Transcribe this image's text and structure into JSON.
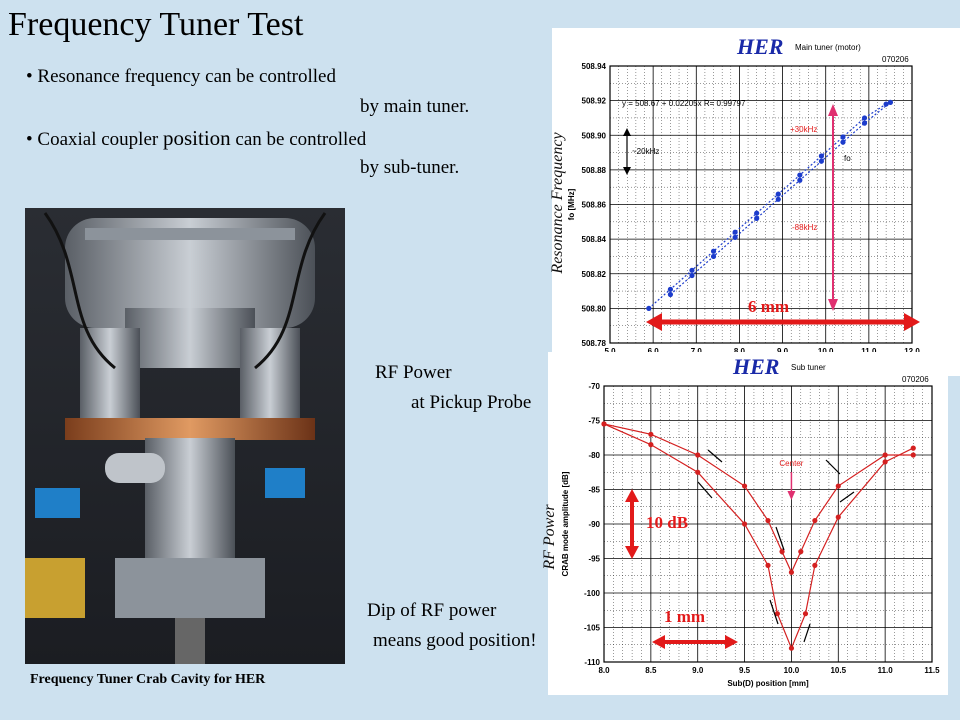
{
  "slide": {
    "title": "Frequency Tuner Test",
    "bullets": [
      {
        "marker": "•",
        "line1": "Resonance frequency can be controlled",
        "line2": "by main tuner."
      },
      {
        "marker": "•",
        "line1a": "Coaxial coupler ",
        "line1b": "position",
        "line1c": " can be controlled",
        "line2": "by sub-tuner."
      }
    ],
    "photo_caption": "Frequency Tuner Crab Cavity for HER",
    "rf_note": {
      "line1": "RF Power",
      "line2": "at Pickup Probe"
    },
    "dip_note": {
      "line1": "Dip of RF power",
      "line2": "means good position!"
    },
    "colors": {
      "background": "#cde1ef",
      "her_blue": "#1a2aa8",
      "series_red": "#d42020",
      "series_blue": "#1c3ccc",
      "arrow_red": "#e21a1a",
      "arrow_pink": "#e03070"
    }
  },
  "chart_data": [
    {
      "type": "line",
      "title": "HER",
      "subtitle": "Main tuner (motor)",
      "stamp": "070206",
      "ylabel": "fo [MHz]",
      "overlay_label": "Resonance Frequency",
      "fit_text": "y = 508.67 + 0.02205x   R= 0.99797",
      "xlim": [
        5.0,
        12.0
      ],
      "ylim": [
        508.78,
        508.94
      ],
      "xticks": [
        "5.0",
        "6.0",
        "7.0",
        "8.0",
        "9.0",
        "10.0",
        "11.0",
        "12.0"
      ],
      "yticks": [
        "508.94",
        "508.92",
        "508.90",
        "508.88",
        "508.86",
        "508.84",
        "508.82",
        "508.80",
        "508.78"
      ],
      "series": [
        {
          "x": [
            5.9,
            6.4,
            6.9,
            7.4,
            7.9,
            8.4,
            8.9,
            9.4,
            9.9,
            10.4,
            10.9,
            11.4
          ],
          "y": [
            508.8,
            508.811,
            508.822,
            508.833,
            508.844,
            508.855,
            508.866,
            508.877,
            508.888,
            508.899,
            508.91,
            508.918
          ]
        },
        {
          "x": [
            6.4,
            6.9,
            7.4,
            7.9,
            8.4,
            8.9,
            9.4,
            9.9,
            10.4,
            10.9,
            11.5
          ],
          "y": [
            508.808,
            508.819,
            508.83,
            508.841,
            508.852,
            508.863,
            508.874,
            508.885,
            508.896,
            508.907,
            508.919
          ]
        }
      ],
      "annotations": {
        "range_label": "6 mm",
        "up_label": "+30kHz",
        "down_label": "-88kHz",
        "fo_label": "fo",
        "step_label": "~20kHz"
      }
    },
    {
      "type": "line",
      "title": "HER",
      "subtitle": "Sub tuner",
      "stamp": "070206",
      "ylabel": "CRAB mode amplitude [dB]",
      "overlay_label": "RF Power",
      "xlabel": "Sub(D) position [mm]",
      "xlim": [
        8.0,
        11.5
      ],
      "ylim": [
        -110,
        -70
      ],
      "xticks": [
        "8.0",
        "8.5",
        "9.0",
        "9.5",
        "10.0",
        "10.5",
        "11.0",
        "11.5"
      ],
      "yticks": [
        "-70",
        "-75",
        "-80",
        "-85",
        "-90",
        "-95",
        "-100",
        "-105",
        "-110"
      ],
      "series": [
        {
          "x": [
            8.0,
            8.5,
            9.0,
            9.5,
            9.75,
            9.9,
            10.0,
            10.1,
            10.25,
            10.5,
            11.0,
            11.3
          ],
          "y": [
            -75.5,
            -77,
            -80,
            -84.5,
            -89.5,
            -94,
            -97,
            -94,
            -89.5,
            -84.5,
            -80,
            -80
          ]
        },
        {
          "x": [
            8.0,
            8.5,
            9.0,
            9.5,
            9.75,
            9.85,
            10.0,
            10.15,
            10.25,
            10.5,
            11.0,
            11.3
          ],
          "y": [
            -75.5,
            -78.5,
            -82.5,
            -90,
            -96,
            -103,
            -108,
            -103,
            -96,
            -89,
            -81,
            -79
          ]
        }
      ],
      "annotations": {
        "center_label": "Center",
        "range_label": "1 mm",
        "db_label": "10 dB"
      }
    }
  ]
}
